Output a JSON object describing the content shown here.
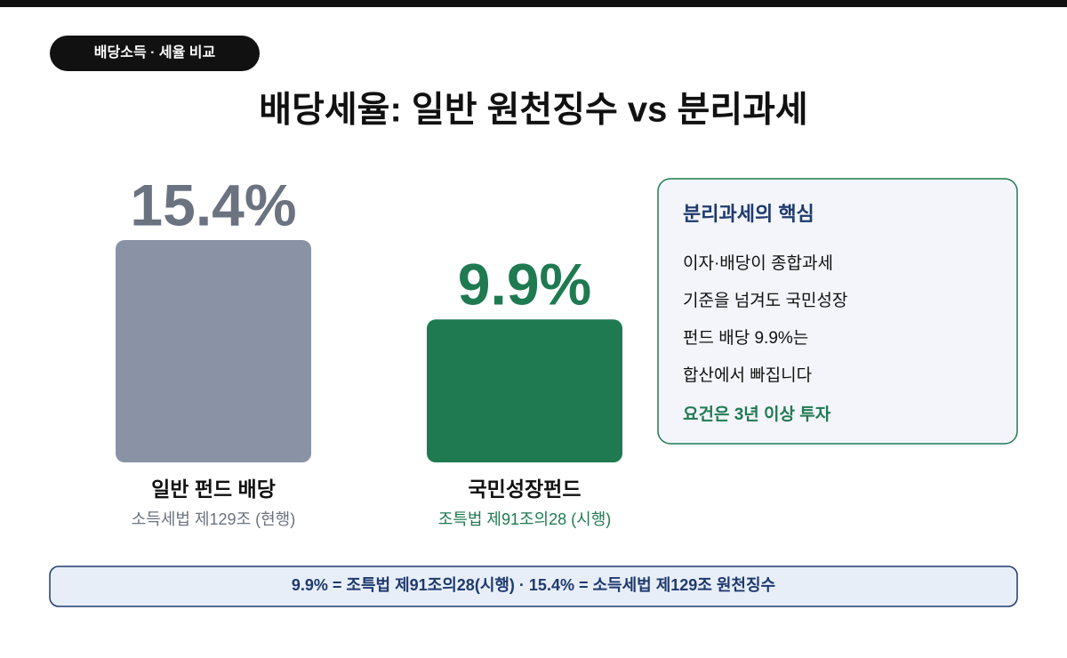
{
  "badge": "배당소득 · 세율 비교",
  "chart_data": {
    "type": "bar",
    "title": "배당세율: 일반 원천징수 vs 분리과세",
    "categories": [
      "일반 펀드 배당",
      "국민성장펀드"
    ],
    "sublabels": [
      "소득세법 제129조 (현행)",
      "조특법 제91조의28 (시행)"
    ],
    "values": [
      15.4,
      9.9
    ],
    "value_labels": [
      "15.4%",
      "9.9%"
    ],
    "colors": [
      "#8a93a6",
      "#1f7a52"
    ],
    "label_colors": [
      "#6b7280",
      "#1f7a52"
    ]
  },
  "panel": {
    "title": "분리과세의 핵심",
    "lines": [
      "이자·배당이 종합과세",
      "기준을 넘겨도 국민성장",
      "펀드 배당 9.9%는",
      "합산에서 빠집니다"
    ],
    "highlight": "요건은 3년 이상 투자"
  },
  "footer": "9.9% = 조특법 제91조의28(시행) · 15.4% = 소득세법 제129조 원천징수"
}
